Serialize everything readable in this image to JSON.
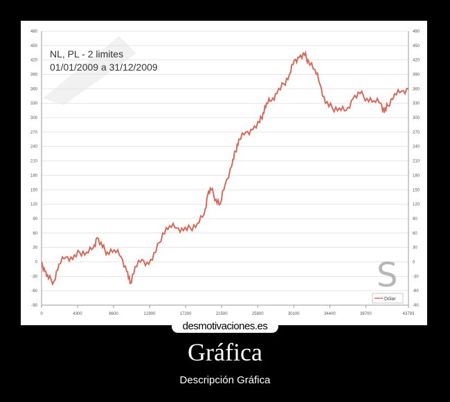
{
  "poster": {
    "title": "Gráfica",
    "subtitle": "Descripción Gráfica",
    "site_logo": "desmotivaciones.es"
  },
  "chart_data": {
    "type": "line",
    "title": "NL, PL  - 2 limites",
    "subtitle": "01/01/2009 a 31/12/2009",
    "xlabel": "",
    "ylabel": "",
    "xlim": [
      0,
      43793
    ],
    "ylim": [
      -90,
      480
    ],
    "x_ticks": [
      0,
      4300,
      8600,
      12900,
      17200,
      21500,
      25800,
      30100,
      34400,
      38700,
      43793
    ],
    "y_ticks": [
      -90,
      -60,
      -30,
      0,
      30,
      60,
      90,
      120,
      150,
      180,
      210,
      240,
      270,
      300,
      330,
      360,
      390,
      420,
      450,
      480
    ],
    "y_axis_mirrored_right": true,
    "grid": "horizontal",
    "legend_position": "bottom-right",
    "series": [
      {
        "name": "Dólar",
        "color": "#d9685a",
        "x": [
          0,
          413,
          826,
          1487,
          2066,
          2892,
          3718,
          4545,
          5371,
          6197,
          6610,
          7271,
          7850,
          8676,
          9502,
          10163,
          10576,
          11155,
          11981,
          12807,
          13634,
          14460,
          15286,
          16113,
          16939,
          17765,
          18591,
          19418,
          19831,
          20244,
          20822,
          21318,
          21897,
          22723,
          23136,
          23549,
          24375,
          25202,
          26028,
          26441,
          26854,
          27433,
          28094,
          28920,
          29581,
          30160,
          30738,
          31399,
          31812,
          32638,
          33216,
          33877,
          34704,
          35530,
          36357,
          37183,
          38009,
          38835,
          39661,
          40488,
          40901,
          41314,
          42140,
          42966,
          43793
        ],
        "y": [
          0,
          -20,
          -35,
          -40,
          -5,
          10,
          5,
          20,
          20,
          30,
          50,
          30,
          20,
          25,
          10,
          -20,
          -45,
          -10,
          5,
          -5,
          20,
          60,
          75,
          70,
          65,
          70,
          80,
          100,
          140,
          150,
          130,
          120,
          160,
          200,
          230,
          255,
          270,
          275,
          290,
          310,
          330,
          335,
          350,
          370,
          390,
          420,
          425,
          430,
          420,
          400,
          370,
          330,
          320,
          320,
          315,
          340,
          350,
          340,
          335,
          330,
          310,
          325,
          350,
          355,
          360
        ]
      }
    ]
  }
}
